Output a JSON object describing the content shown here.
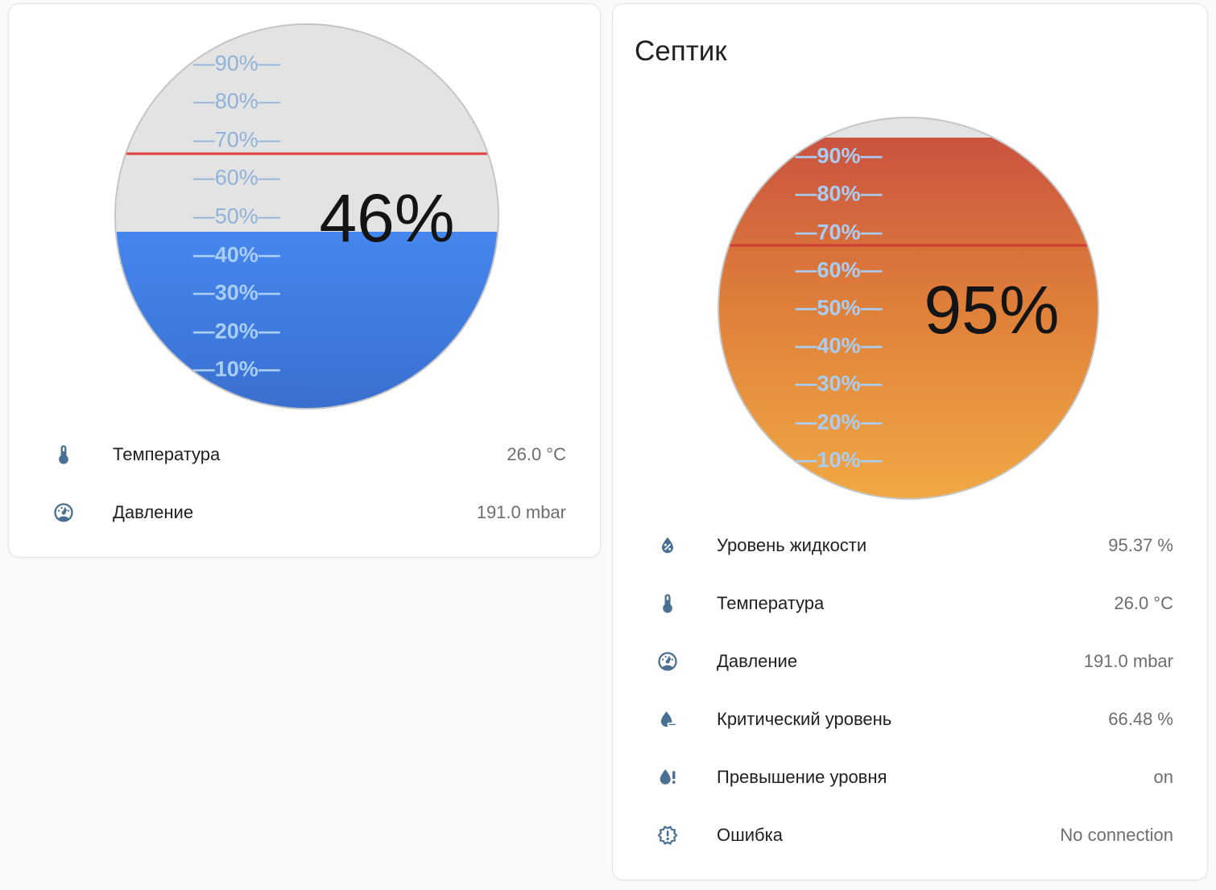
{
  "page": {
    "background": "#fafafa"
  },
  "cards": [
    {
      "gauge": {
        "value_label": "46%",
        "level_pct": 46,
        "alert_level_pct": 66.48,
        "empty_color": "#e3e3e3",
        "fill_gradient": [
          "#4587ee 0%",
          "#3a70d0 100%"
        ],
        "alert_color": "#e23b3a",
        "tick_color_above": "#8fb2d8",
        "tick_color_below": "#a9cdf3",
        "ticks": [
          {
            "level": 90,
            "label": "—90%—"
          },
          {
            "level": 80,
            "label": "—80%—"
          },
          {
            "level": 70,
            "label": "—70%—"
          },
          {
            "level": 60,
            "label": "—60%—"
          },
          {
            "level": 50,
            "label": "—50%—"
          },
          {
            "level": 40,
            "label": "—40%—"
          },
          {
            "level": 30,
            "label": "—30%—"
          },
          {
            "level": 20,
            "label": "—20%—"
          },
          {
            "level": 10,
            "label": "—10%—"
          }
        ]
      },
      "rows": [
        {
          "icon": "thermometer-icon",
          "label": "Температура",
          "value": "26.0 °C"
        },
        {
          "icon": "gauge-icon",
          "label": "Давление",
          "value": "191.0 mbar"
        }
      ]
    },
    {
      "title": "Септик",
      "gauge": {
        "value_label": "95%",
        "level_pct": 95,
        "alert_level_pct": 66.48,
        "empty_color": "#e3e3e3",
        "fill_gradient": [
          "#ca5340 0%",
          "#e0823a 50%",
          "#f0a844 100%"
        ],
        "alert_color": "#d33b35",
        "tick_color_above": "#8fb2d8",
        "tick_color_below": "#a9cdf3",
        "ticks": [
          {
            "level": 90,
            "label": "—90%—"
          },
          {
            "level": 80,
            "label": "—80%—"
          },
          {
            "level": 70,
            "label": "—70%—"
          },
          {
            "level": 60,
            "label": "—60%—"
          },
          {
            "level": 50,
            "label": "—50%—"
          },
          {
            "level": 40,
            "label": "—40%—"
          },
          {
            "level": 30,
            "label": "—30%—"
          },
          {
            "level": 20,
            "label": "—20%—"
          },
          {
            "level": 10,
            "label": "—10%—"
          }
        ]
      },
      "rows": [
        {
          "icon": "water-percent-icon",
          "label": "Уровень жидкости",
          "value": "95.37 %"
        },
        {
          "icon": "thermometer-icon",
          "label": "Температура",
          "value": "26.0 °C"
        },
        {
          "icon": "gauge-icon",
          "label": "Давление",
          "value": "191.0 mbar"
        },
        {
          "icon": "water-minus-icon",
          "label": "Критический уровень",
          "value": "66.48 %"
        },
        {
          "icon": "water-alert-icon",
          "label": "Превышение уровня",
          "value": "on"
        },
        {
          "icon": "alert-decagram-icon",
          "label": "Ошибка",
          "value": "No connection"
        }
      ]
    }
  ]
}
